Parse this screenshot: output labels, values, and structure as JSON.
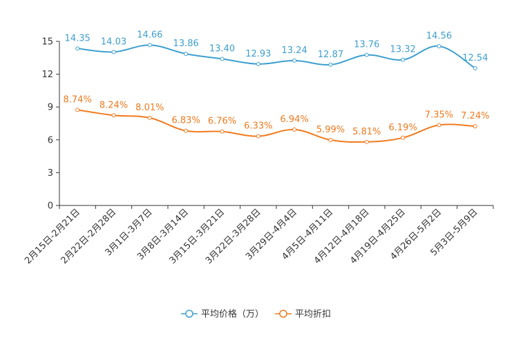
{
  "chart_data": {
    "type": "line",
    "title": "",
    "xlabel": "",
    "ylabel": "",
    "ylim": [
      0,
      15
    ],
    "yticks": [
      0,
      3,
      6,
      9,
      12,
      15
    ],
    "grid": false,
    "legend_position": "bottom-center",
    "categories": [
      "2月15日-2月21日",
      "2月22日-2月28日",
      "3月1日-3月7日",
      "3月8日-3月14日",
      "3月15日-3月21日",
      "3月22日-3月28日",
      "3月29日-4月4日",
      "4月5日-4月11日",
      "4月12日-4月18日",
      "4月19日-4月25日",
      "4月26日-5月2日",
      "5月3日-5月9日"
    ],
    "series": [
      {
        "name": "平均价格（万）",
        "color": "#3d9fd0",
        "values": [
          14.35,
          14.03,
          14.66,
          13.86,
          13.4,
          12.93,
          13.24,
          12.87,
          13.76,
          13.32,
          14.56,
          12.54
        ],
        "labels": [
          "14.35",
          "14.03",
          "14.66",
          "13.86",
          "13.40",
          "12.93",
          "13.24",
          "12.87",
          "13.76",
          "13.32",
          "14.56",
          "12.54"
        ]
      },
      {
        "name": "平均折扣",
        "color": "#f07a1e",
        "values": [
          8.74,
          8.24,
          8.01,
          6.83,
          6.76,
          6.33,
          6.94,
          5.99,
          5.81,
          6.19,
          7.35,
          7.24
        ],
        "labels": [
          "8.74%",
          "8.24%",
          "8.01%",
          "6.83%",
          "6.76%",
          "6.33%",
          "6.94%",
          "5.99%",
          "5.81%",
          "6.19%",
          "7.35%",
          "7.24%"
        ]
      }
    ]
  }
}
